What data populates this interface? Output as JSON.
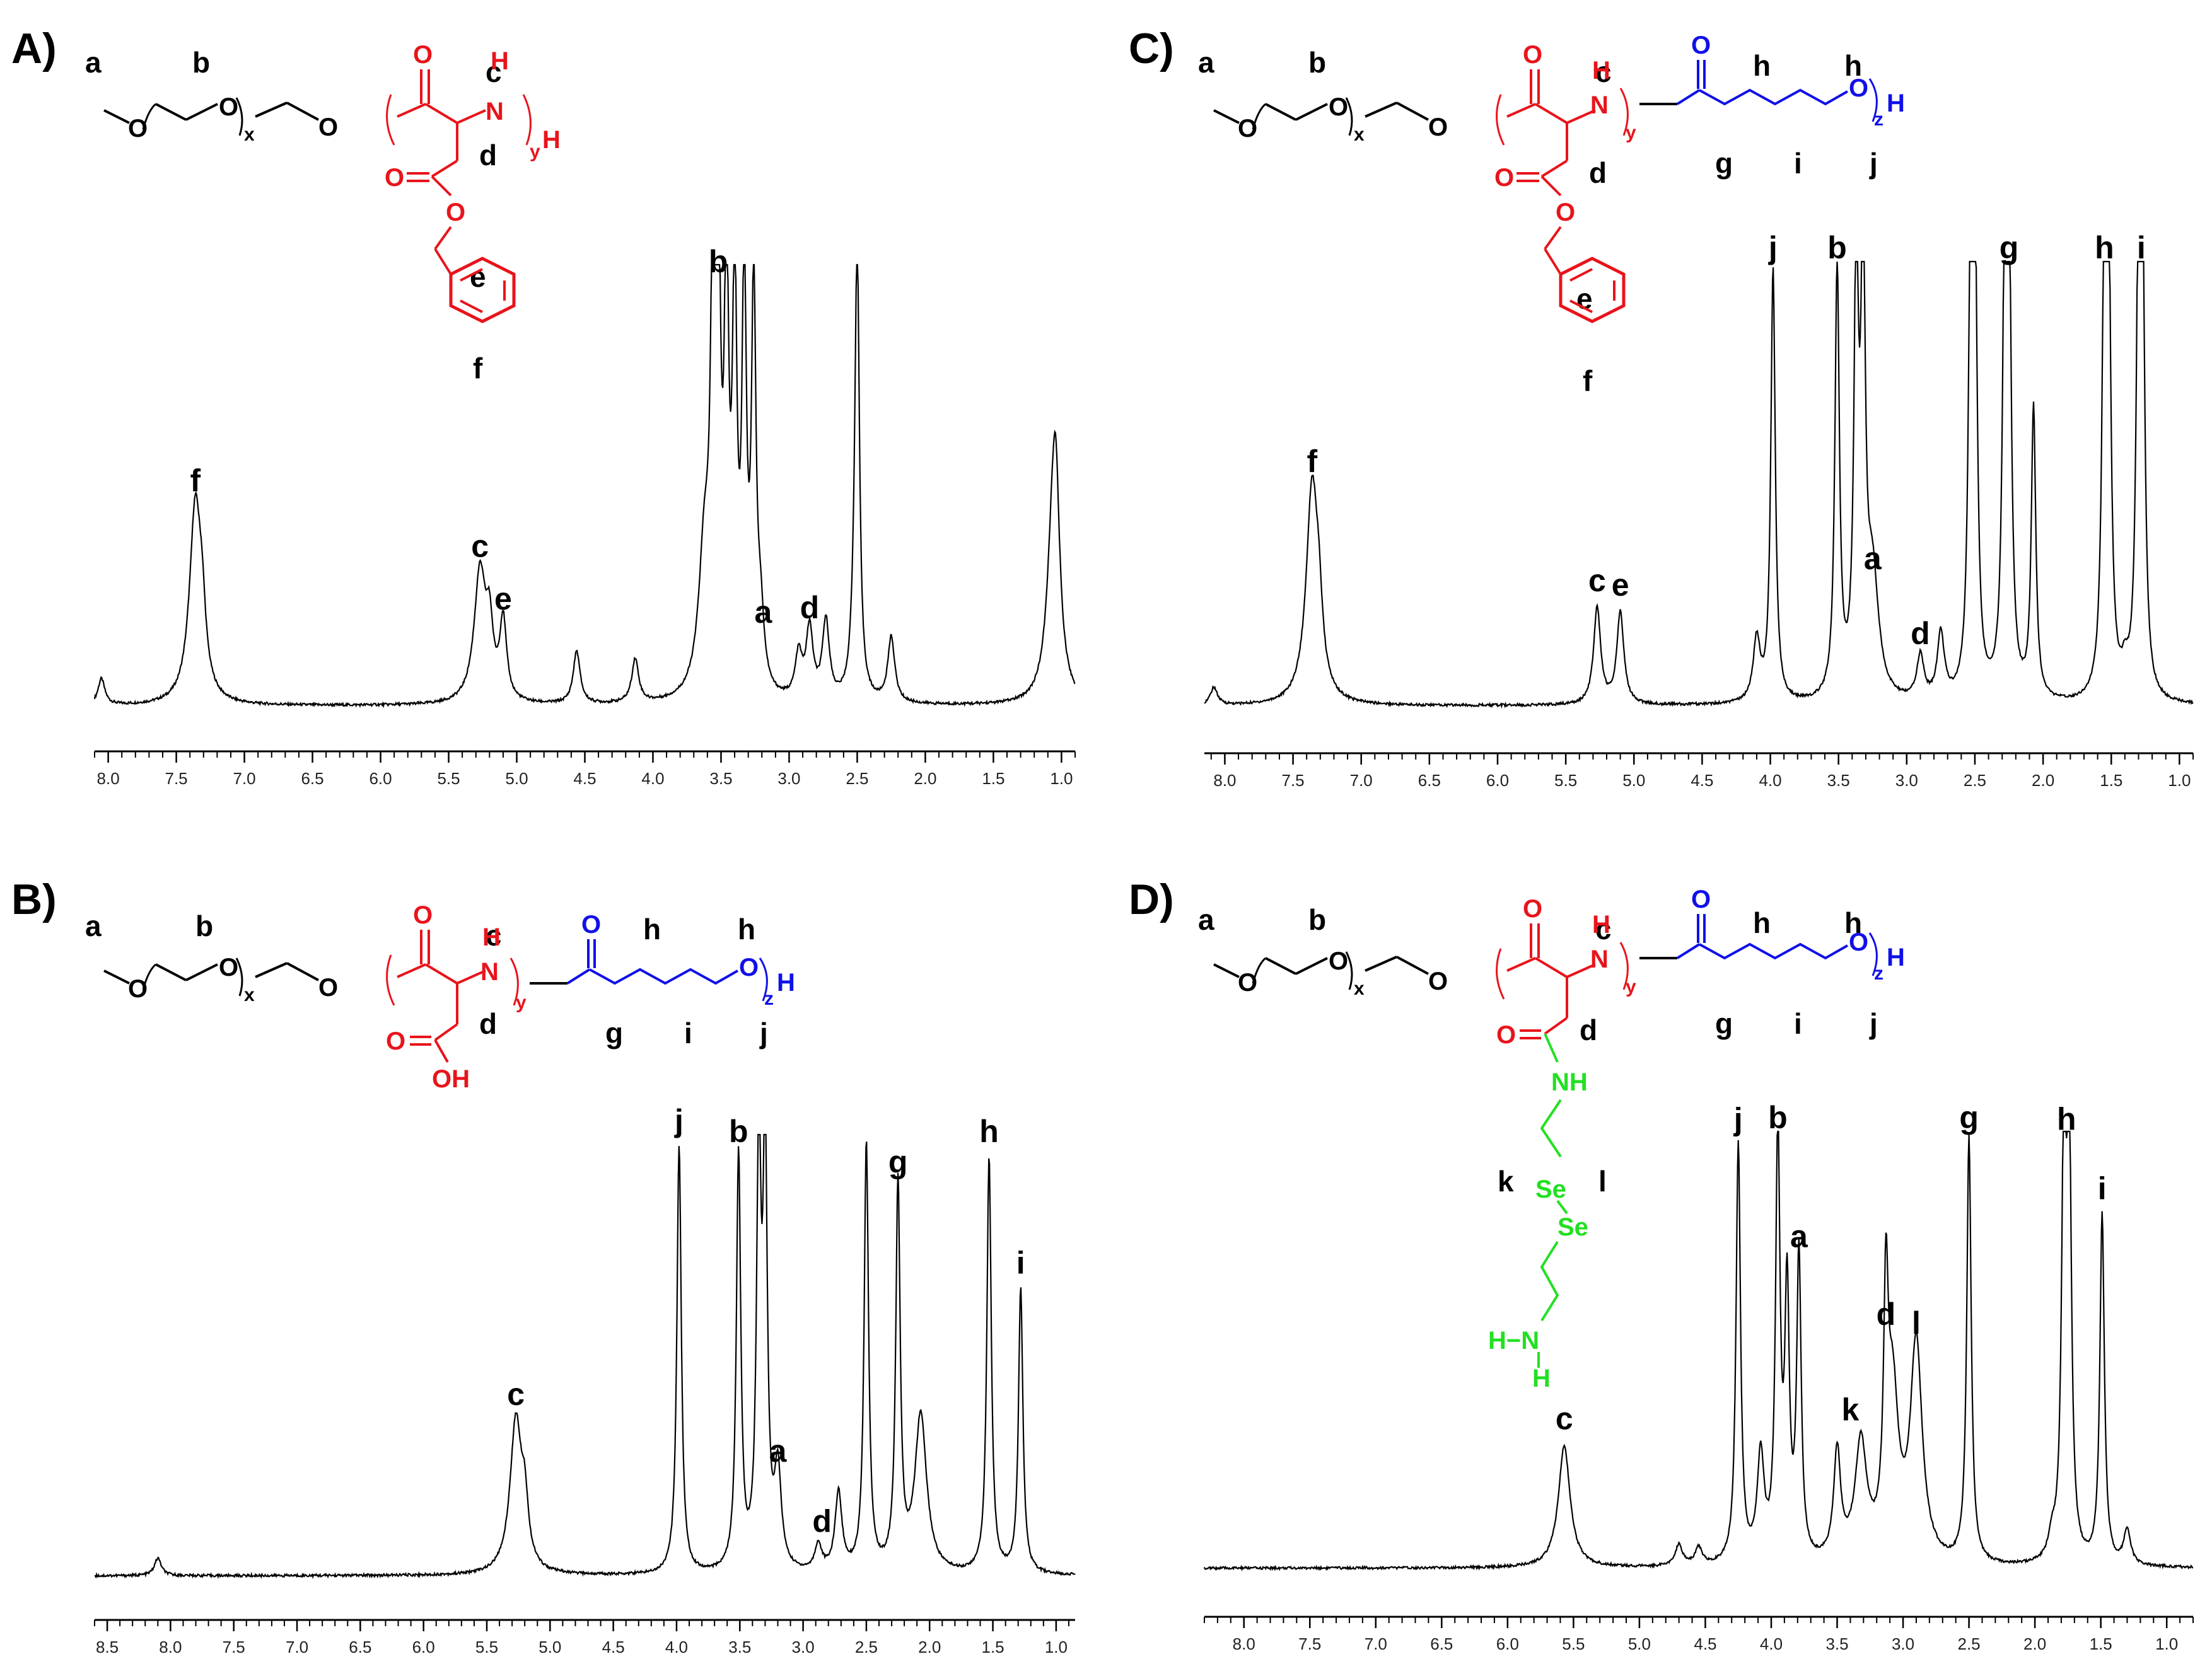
{
  "colors": {
    "red": "#e8141b",
    "blue": "#1010e8",
    "green": "#22e022",
    "black": "#000000"
  },
  "panels": [
    {
      "id": "A",
      "label": "A)"
    },
    {
      "id": "B",
      "label": "B)"
    },
    {
      "id": "C",
      "label": "C)"
    },
    {
      "id": "D",
      "label": "D)"
    }
  ],
  "structure_text": {
    "atom_O": "O",
    "atom_N": "N",
    "atom_H": "H",
    "atom_NH": "NH",
    "atom_OH": "OH",
    "atom_Se": "Se",
    "sub_x": "x",
    "sub_y": "y",
    "sub_z": "z",
    "hn": "H−N"
  },
  "chart_data": [
    {
      "panel": "A",
      "type": "line",
      "xlabel": "",
      "ylabel": "",
      "xlim": [
        8.1,
        0.9
      ],
      "ticks": [
        "8.0",
        "7.5",
        "7.0",
        "6.5",
        "6.0",
        "5.5",
        "5.0",
        "4.5",
        "4.0",
        "3.5",
        "3.0",
        "2.5",
        "2.0",
        "1.5",
        "1.0"
      ],
      "peaks": [
        {
          "x": 8.05,
          "h": 0.06
        },
        {
          "x": 7.36,
          "h": 0.45
        },
        {
          "x": 7.31,
          "h": 0.12
        },
        {
          "x": 5.27,
          "h": 0.3
        },
        {
          "x": 5.2,
          "h": 0.14
        },
        {
          "x": 5.1,
          "h": 0.18
        },
        {
          "x": 4.56,
          "h": 0.12
        },
        {
          "x": 4.13,
          "h": 0.1
        },
        {
          "x": 3.62,
          "h": 0.33
        },
        {
          "x": 3.56,
          "h": 0.88
        },
        {
          "x": 3.52,
          "h": 0.95
        },
        {
          "x": 3.46,
          "h": 0.92
        },
        {
          "x": 3.4,
          "h": 0.9
        },
        {
          "x": 3.33,
          "h": 0.92
        },
        {
          "x": 3.26,
          "h": 0.9
        },
        {
          "x": 3.21,
          "h": 0.15
        },
        {
          "x": 2.93,
          "h": 0.1
        },
        {
          "x": 2.85,
          "h": 0.16
        },
        {
          "x": 2.73,
          "h": 0.18
        },
        {
          "x": 2.52,
          "h": 0.12
        },
        {
          "x": 2.5,
          "h": 0.98
        },
        {
          "x": 2.25,
          "h": 0.15
        },
        {
          "x": 1.06,
          "h": 0.42
        },
        {
          "x": 1.04,
          "h": 0.24
        }
      ],
      "peak_labels": [
        {
          "text": "f",
          "x": 7.36
        },
        {
          "text": "c",
          "x": 5.27
        },
        {
          "text": "e",
          "x": 5.1
        },
        {
          "text": "b",
          "x": 3.52
        },
        {
          "text": "a",
          "x": 3.19
        },
        {
          "text": "d",
          "x": 2.85
        }
      ]
    },
    {
      "panel": "B",
      "type": "line",
      "xlabel": "",
      "ylabel": "",
      "xlim": [
        8.6,
        0.85
      ],
      "ticks": [
        "8.5",
        "8.0",
        "7.5",
        "7.0",
        "6.5",
        "6.0",
        "5.5",
        "5.0",
        "4.5",
        "4.0",
        "3.5",
        "3.0",
        "2.5",
        "2.0",
        "1.5",
        "1.0"
      ],
      "peaks": [
        {
          "x": 8.1,
          "h": 0.04
        },
        {
          "x": 5.27,
          "h": 0.35
        },
        {
          "x": 5.2,
          "h": 0.12
        },
        {
          "x": 3.98,
          "h": 0.98
        },
        {
          "x": 3.51,
          "h": 0.95
        },
        {
          "x": 3.35,
          "h": 0.95
        },
        {
          "x": 3.3,
          "h": 0.93
        },
        {
          "x": 3.2,
          "h": 0.22
        },
        {
          "x": 2.88,
          "h": 0.06
        },
        {
          "x": 2.72,
          "h": 0.18
        },
        {
          "x": 2.5,
          "h": 0.98
        },
        {
          "x": 2.25,
          "h": 0.88
        },
        {
          "x": 2.07,
          "h": 0.36
        },
        {
          "x": 1.53,
          "h": 0.95
        },
        {
          "x": 1.28,
          "h": 0.65
        }
      ],
      "peak_labels": [
        {
          "text": "c",
          "x": 5.27
        },
        {
          "text": "j",
          "x": 3.98
        },
        {
          "text": "b",
          "x": 3.51
        },
        {
          "text": "a",
          "x": 3.2
        },
        {
          "text": "d",
          "x": 2.85
        },
        {
          "text": "g",
          "x": 2.25
        },
        {
          "text": "h",
          "x": 1.53
        },
        {
          "text": "i",
          "x": 1.28
        }
      ]
    },
    {
      "panel": "C",
      "type": "line",
      "xlabel": "",
      "ylabel": "",
      "xlim": [
        8.15,
        0.9
      ],
      "ticks": [
        "8.0",
        "7.5",
        "7.0",
        "6.5",
        "6.0",
        "5.5",
        "5.0",
        "4.5",
        "4.0",
        "3.5",
        "3.0",
        "2.5",
        "2.0",
        "1.5",
        "1.0"
      ],
      "peaks": [
        {
          "x": 8.08,
          "h": 0.04
        },
        {
          "x": 7.36,
          "h": 0.49
        },
        {
          "x": 7.31,
          "h": 0.12
        },
        {
          "x": 5.27,
          "h": 0.22
        },
        {
          "x": 5.1,
          "h": 0.21
        },
        {
          "x": 4.1,
          "h": 0.14
        },
        {
          "x": 3.98,
          "h": 0.98
        },
        {
          "x": 3.51,
          "h": 0.98
        },
        {
          "x": 3.37,
          "h": 0.97
        },
        {
          "x": 3.32,
          "h": 0.96
        },
        {
          "x": 3.25,
          "h": 0.27
        },
        {
          "x": 2.9,
          "h": 0.1
        },
        {
          "x": 2.75,
          "h": 0.15
        },
        {
          "x": 2.53,
          "h": 0.98
        },
        {
          "x": 2.5,
          "h": 0.98
        },
        {
          "x": 2.28,
          "h": 0.98
        },
        {
          "x": 2.25,
          "h": 0.98
        },
        {
          "x": 2.07,
          "h": 0.66
        },
        {
          "x": 1.55,
          "h": 0.98
        },
        {
          "x": 1.52,
          "h": 0.98
        },
        {
          "x": 1.4,
          "h": 0.05
        },
        {
          "x": 1.3,
          "h": 0.98
        },
        {
          "x": 1.27,
          "h": 0.9
        }
      ],
      "peak_labels": [
        {
          "text": "f",
          "x": 7.36
        },
        {
          "text": "c",
          "x": 5.27
        },
        {
          "text": "e",
          "x": 5.1
        },
        {
          "text": "j",
          "x": 3.98
        },
        {
          "text": "b",
          "x": 3.51
        },
        {
          "text": "a",
          "x": 3.25
        },
        {
          "text": "d",
          "x": 2.9
        },
        {
          "text": "g",
          "x": 2.25
        },
        {
          "text": "h",
          "x": 1.55
        },
        {
          "text": "i",
          "x": 1.28
        }
      ]
    },
    {
      "panel": "D",
      "type": "line",
      "xlabel": "",
      "ylabel": "",
      "xlim": [
        8.3,
        0.8
      ],
      "ticks": [
        "8.0",
        "7.5",
        "7.0",
        "6.5",
        "6.0",
        "5.5",
        "5.0",
        "4.5",
        "4.0",
        "3.5",
        "3.0",
        "2.5",
        "2.0",
        "1.5",
        "1.0"
      ],
      "peaks": [
        {
          "x": 5.57,
          "h": 0.28
        },
        {
          "x": 4.7,
          "h": 0.05
        },
        {
          "x": 4.55,
          "h": 0.04
        },
        {
          "x": 4.08,
          "h": 0.24
        },
        {
          "x": 4.25,
          "h": 0.97
        },
        {
          "x": 3.95,
          "h": 0.98
        },
        {
          "x": 3.88,
          "h": 0.6
        },
        {
          "x": 3.79,
          "h": 0.7
        },
        {
          "x": 3.5,
          "h": 0.25
        },
        {
          "x": 3.32,
          "h": 0.27
        },
        {
          "x": 3.13,
          "h": 0.52
        },
        {
          "x": 3.08,
          "h": 0.38
        },
        {
          "x": 2.9,
          "h": 0.5
        },
        {
          "x": 2.5,
          "h": 0.98
        },
        {
          "x": 1.87,
          "h": 0.05
        },
        {
          "x": 1.78,
          "h": 0.97
        },
        {
          "x": 1.74,
          "h": 0.96
        },
        {
          "x": 1.49,
          "h": 0.81
        },
        {
          "x": 1.3,
          "h": 0.08
        }
      ],
      "peak_labels": [
        {
          "text": "c",
          "x": 5.57
        },
        {
          "text": "j",
          "x": 4.25
        },
        {
          "text": "b",
          "x": 3.95
        },
        {
          "text": "a",
          "x": 3.79
        },
        {
          "text": "k",
          "x": 3.4
        },
        {
          "text": "d",
          "x": 3.13
        },
        {
          "text": "l",
          "x": 2.9
        },
        {
          "text": "g",
          "x": 2.5
        },
        {
          "text": "h",
          "x": 1.76
        },
        {
          "text": "i",
          "x": 1.49
        }
      ]
    }
  ]
}
